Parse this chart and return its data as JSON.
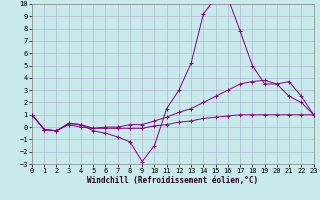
{
  "bg_color": "#c8eaea",
  "grid_color": "#aaaacc",
  "line_color": "#880088",
  "xlim": [
    0,
    23
  ],
  "ylim": [
    -3,
    10
  ],
  "xticks": [
    0,
    1,
    2,
    3,
    4,
    5,
    6,
    7,
    8,
    9,
    10,
    11,
    12,
    13,
    14,
    15,
    16,
    17,
    18,
    19,
    20,
    21,
    22,
    23
  ],
  "yticks": [
    -3,
    -2,
    -1,
    0,
    1,
    2,
    3,
    4,
    5,
    6,
    7,
    8,
    9,
    10
  ],
  "xlabel": "Windchill (Refroidissement éolien,°C)",
  "line1_x": [
    0,
    1,
    2,
    3,
    4,
    5,
    6,
    7,
    8,
    9,
    10,
    11,
    12,
    13,
    14,
    15,
    16,
    17,
    18,
    19,
    20,
    21,
    22,
    23
  ],
  "line1_y": [
    1,
    -0.2,
    -0.3,
    0.2,
    0.0,
    -0.1,
    -0.1,
    -0.1,
    -0.1,
    -0.1,
    0.1,
    0.2,
    0.4,
    0.5,
    0.7,
    0.8,
    0.9,
    1.0,
    1.0,
    1.0,
    1.0,
    1.0,
    1.0,
    1.0
  ],
  "line2_x": [
    0,
    1,
    2,
    3,
    4,
    5,
    6,
    7,
    8,
    9,
    10,
    11,
    12,
    13,
    14,
    15,
    16,
    17,
    18,
    19,
    20,
    21,
    22,
    23
  ],
  "line2_y": [
    1,
    -0.2,
    -0.3,
    0.3,
    0.2,
    -0.3,
    -0.5,
    -0.8,
    -1.2,
    -2.8,
    -1.5,
    1.5,
    3.0,
    5.2,
    9.2,
    10.5,
    10.5,
    7.8,
    5.0,
    3.5,
    3.5,
    3.7,
    2.5,
    1.0
  ],
  "line3_x": [
    0,
    1,
    2,
    3,
    4,
    5,
    6,
    7,
    8,
    9,
    10,
    11,
    12,
    13,
    14,
    15,
    16,
    17,
    18,
    19,
    20,
    21,
    22,
    23
  ],
  "line3_y": [
    1,
    -0.2,
    -0.3,
    0.3,
    0.2,
    -0.1,
    0.0,
    0.0,
    0.2,
    0.2,
    0.5,
    0.8,
    1.2,
    1.5,
    2.0,
    2.5,
    3.0,
    3.5,
    3.7,
    3.8,
    3.5,
    2.5,
    2.0,
    1.0
  ]
}
